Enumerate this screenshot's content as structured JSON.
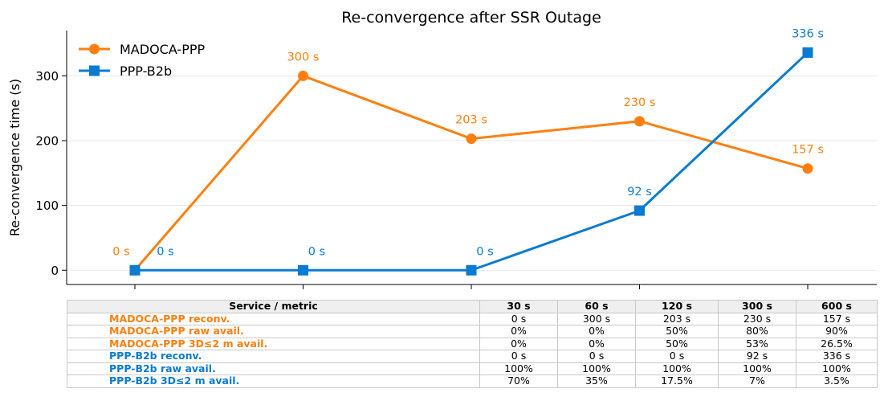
{
  "chart_data": {
    "type": "line",
    "title": "Re-convergence after SSR Outage",
    "ylabel": "Re-convergence time (s)",
    "xlabel": "",
    "categories": [
      "30 s",
      "60 s",
      "120 s",
      "300 s",
      "600 s"
    ],
    "ylim": [
      -22,
      370
    ],
    "yticks": [
      0,
      100,
      200,
      300
    ],
    "grid": "horizontal",
    "legend_position": "top-left",
    "series": [
      {
        "name": "MADOCA-PPP",
        "color": "#ff7f0e",
        "marker": "circle",
        "values": [
          0,
          300,
          203,
          230,
          157
        ],
        "labels": [
          "0 s",
          "300 s",
          "203 s",
          "230 s",
          "157 s"
        ]
      },
      {
        "name": "PPP-B2b",
        "color": "#0a7bd0",
        "marker": "square",
        "values": [
          0,
          0,
          0,
          92,
          336
        ],
        "labels": [
          "0 s",
          "0 s",
          "0 s",
          "92 s",
          "336 s"
        ]
      }
    ]
  },
  "table": {
    "headers": [
      "Service / metric",
      "30 s",
      "60 s",
      "120 s",
      "300 s",
      "600 s"
    ],
    "rows": [
      {
        "metric": "MADOCA-PPP reconv.",
        "group": "orange",
        "cells": [
          "0 s",
          "300 s",
          "203 s",
          "230 s",
          "157 s"
        ]
      },
      {
        "metric": "MADOCA-PPP raw avail.",
        "group": "orange",
        "cells": [
          "0%",
          "0%",
          "50%",
          "80%",
          "90%"
        ]
      },
      {
        "metric": "MADOCA-PPP 3D≤2 m avail.",
        "group": "orange",
        "cells": [
          "0%",
          "0%",
          "50%",
          "53%",
          "26.5%"
        ]
      },
      {
        "metric": "PPP-B2b reconv.",
        "group": "blue",
        "cells": [
          "0 s",
          "0 s",
          "0 s",
          "92 s",
          "336 s"
        ]
      },
      {
        "metric": "PPP-B2b raw avail.",
        "group": "blue",
        "cells": [
          "100%",
          "100%",
          "100%",
          "100%",
          "100%"
        ]
      },
      {
        "metric": "PPP-B2b 3D≤2 m avail.",
        "group": "blue",
        "cells": [
          "70%",
          "35%",
          "17.5%",
          "7%",
          "3.5%"
        ]
      }
    ]
  }
}
